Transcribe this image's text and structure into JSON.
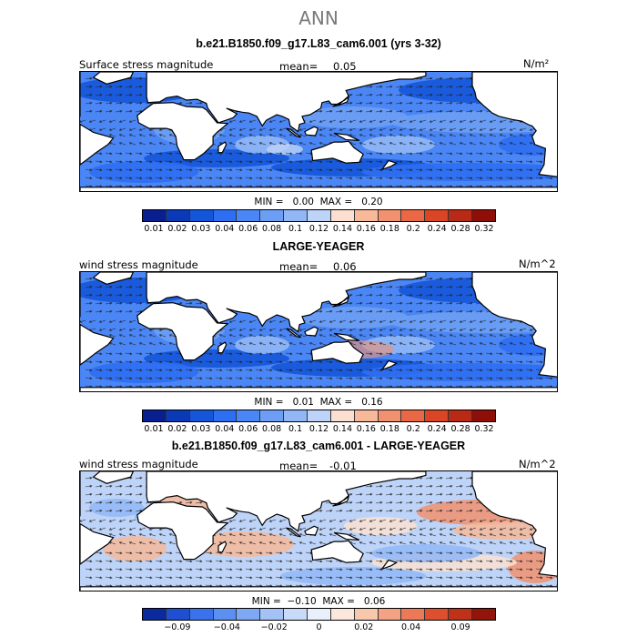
{
  "title": "ANN",
  "land_color": "#ffffff",
  "arrow_color": "#222222",
  "panels": [
    {
      "id": "model",
      "title": "b.e21.B1850.f09_g17.L83_cam6.001 (yrs 3-32)",
      "field_label": "Surface stress magnitude",
      "mean_label": "mean=",
      "mean_value": "0.05",
      "units": "N/m²",
      "min_max_text": "MIN =   0.00  MAX =   0.20",
      "colorbar": {
        "colors": [
          "#0a1f8f",
          "#0a3ab8",
          "#1456d9",
          "#2e6ef2",
          "#4a86f5",
          "#6c9ef5",
          "#91b7f7",
          "#bdd3f8",
          "#fbe0d1",
          "#f7b99a",
          "#f29170",
          "#ea6845",
          "#d94525",
          "#b92a16",
          "#8f0f08"
        ],
        "labels": [
          "0.01",
          "0.02",
          "0.03",
          "0.04",
          "0.06",
          "0.08",
          "0.1",
          "0.12",
          "0.14",
          "0.16",
          "0.18",
          "0.2",
          "0.24",
          "0.28",
          "0.32"
        ]
      }
    },
    {
      "id": "obs",
      "title": "LARGE-YEAGER",
      "field_label": "wind stress magnitude",
      "mean_label": "mean=",
      "mean_value": "0.06",
      "units": "N/m^2",
      "min_max_text": "MIN =   0.01  MAX =   0.16",
      "colorbar": {
        "colors": [
          "#0a1f8f",
          "#0a3ab8",
          "#1456d9",
          "#2e6ef2",
          "#4a86f5",
          "#6c9ef5",
          "#91b7f7",
          "#bdd3f8",
          "#fbe0d1",
          "#f7b99a",
          "#f29170",
          "#ea6845",
          "#d94525",
          "#b92a16",
          "#8f0f08"
        ],
        "labels": [
          "0.01",
          "0.02",
          "0.03",
          "0.04",
          "0.06",
          "0.08",
          "0.1",
          "0.12",
          "0.14",
          "0.16",
          "0.18",
          "0.2",
          "0.24",
          "0.28",
          "0.32"
        ]
      }
    },
    {
      "id": "diff",
      "title": "b.e21.B1850.f09_g17.L83_cam6.001 - LARGE-YEAGER",
      "field_label": "wind stress magnitude",
      "mean_label": "mean=",
      "mean_value": "-0.01",
      "units": "N/m^2",
      "min_max_text": "MIN =  −0.10  MAX =   0.06",
      "colorbar": {
        "colors": [
          "#0a2a9e",
          "#1e4fd1",
          "#3a72ee",
          "#5b8ff2",
          "#7ea8f4",
          "#a4c2f6",
          "#c8daf8",
          "#e9f0fb",
          "#fbe7dc",
          "#f8c8ad",
          "#f3a283",
          "#ec7a58",
          "#dd4f2e",
          "#c0311a",
          "#93140a"
        ],
        "labels": [
          "−0.09",
          "−0.04",
          "−0.02",
          "0",
          "0.02",
          "0.04",
          "0.09"
        ]
      }
    }
  ]
}
